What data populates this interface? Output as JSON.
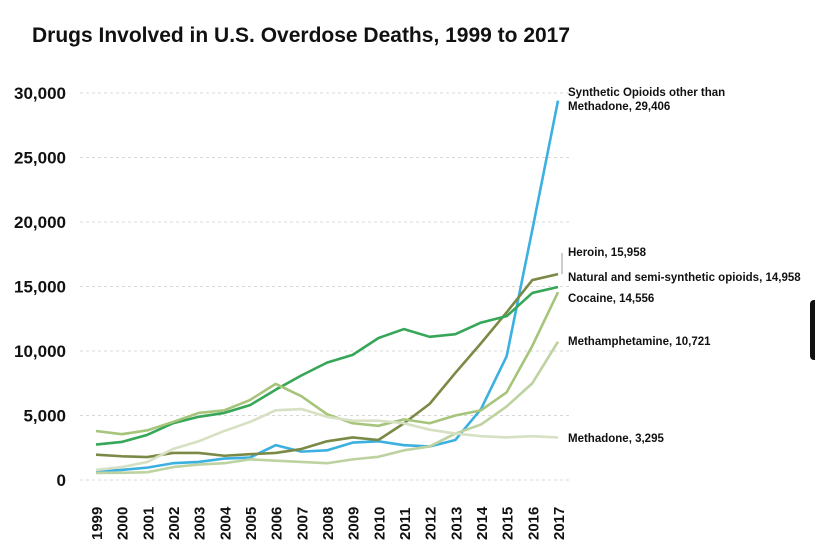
{
  "chart_data": {
    "type": "line",
    "title": "Drugs Involved in U.S. Overdose Deaths, 1999 to 2017",
    "categories": [
      "1999",
      "2000",
      "2001",
      "2002",
      "2003",
      "2004",
      "2005",
      "2006",
      "2007",
      "2008",
      "2009",
      "2010",
      "2011",
      "2012",
      "2013",
      "2014",
      "2015",
      "2016",
      "2017"
    ],
    "ylim": [
      0,
      30000
    ],
    "yticks": [
      {
        "value": 0,
        "label": "0"
      },
      {
        "value": 5000,
        "label": "5,000"
      },
      {
        "value": 10000,
        "label": "10,000"
      },
      {
        "value": 15000,
        "label": "15,000"
      },
      {
        "value": 20000,
        "label": "20,000"
      },
      {
        "value": 25000,
        "label": "25,000"
      },
      {
        "value": 30000,
        "label": "30,000"
      }
    ],
    "grid": true,
    "series": [
      {
        "name": "Synthetic Opioids other than Methadone, 29,406",
        "color": "#3cb0e0",
        "values": [
          730,
          780,
          960,
          1300,
          1400,
          1660,
          1740,
          2700,
          2200,
          2300,
          2900,
          3000,
          2700,
          2600,
          3100,
          5500,
          9600,
          19400,
          29406
        ]
      },
      {
        "name": "Heroin, 15,958",
        "color": "#7a8a46",
        "values": [
          1960,
          1840,
          1780,
          2100,
          2100,
          1880,
          2000,
          2100,
          2400,
          3000,
          3300,
          3100,
          4400,
          5900,
          8300,
          10600,
          13000,
          15500,
          15958
        ]
      },
      {
        "name": "Natural and semi-synthetic opioids, 14,958",
        "color": "#36a658",
        "values": [
          2750,
          2950,
          3500,
          4400,
          4900,
          5200,
          5800,
          7000,
          8100,
          9100,
          9700,
          11000,
          11700,
          11100,
          11300,
          12200,
          12700,
          14500,
          14958
        ]
      },
      {
        "name": "Cocaine, 14,556",
        "color": "#a6c47a",
        "values": [
          3800,
          3550,
          3850,
          4500,
          5200,
          5400,
          6200,
          7450,
          6500,
          5100,
          4400,
          4200,
          4700,
          4400,
          5000,
          5400,
          6800,
          10400,
          14556
        ]
      },
      {
        "name": "Methamphetamine, 10,721",
        "color": "#bdd2a0",
        "values": [
          550,
          560,
          600,
          1000,
          1200,
          1300,
          1600,
          1500,
          1400,
          1300,
          1600,
          1800,
          2300,
          2600,
          3600,
          4300,
          5700,
          7500,
          10721
        ]
      },
      {
        "name": "Methadone, 3,295",
        "color": "#d6e0c2",
        "values": [
          780,
          1000,
          1400,
          2400,
          3000,
          3800,
          4500,
          5400,
          5500,
          4900,
          4600,
          4600,
          4400,
          3900,
          3600,
          3400,
          3300,
          3400,
          3295
        ]
      }
    ]
  }
}
